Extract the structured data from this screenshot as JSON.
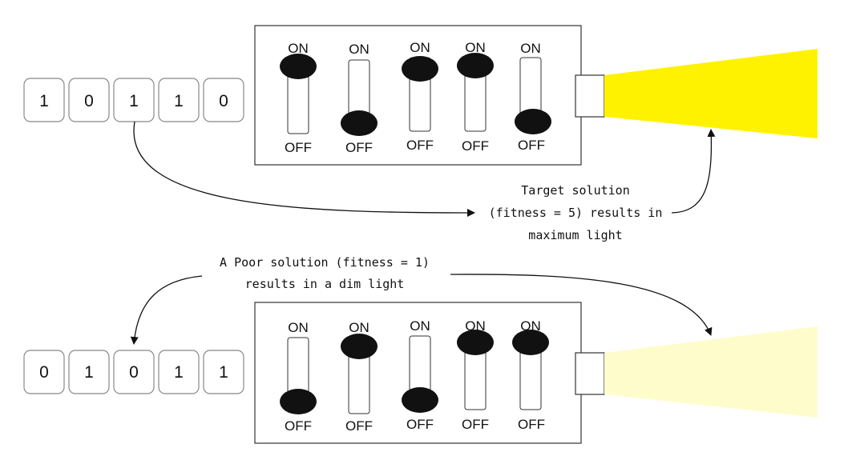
{
  "labels": {
    "on": "ON",
    "off": "OFF"
  },
  "rows": [
    {
      "id": "target",
      "bits": [
        "1",
        "0",
        "1",
        "1",
        "0"
      ],
      "switches": [
        "on",
        "off",
        "on",
        "on",
        "off"
      ],
      "light_color": "#fff200",
      "light_level": "maximum"
    },
    {
      "id": "poor",
      "bits": [
        "0",
        "1",
        "0",
        "1",
        "1"
      ],
      "switches": [
        "off",
        "on",
        "off",
        "on",
        "on"
      ],
      "light_color": "#fffccc",
      "light_level": "dim"
    }
  ],
  "notes": {
    "target": [
      "Target solution",
      "(fitness = 5) results in",
      "maximum light"
    ],
    "poor": [
      "A Poor solution (fitness = 1)",
      "results in a dim light"
    ]
  },
  "colors": {
    "stroke": "#333333",
    "knob": "#111111",
    "bit_box": "#888888"
  }
}
